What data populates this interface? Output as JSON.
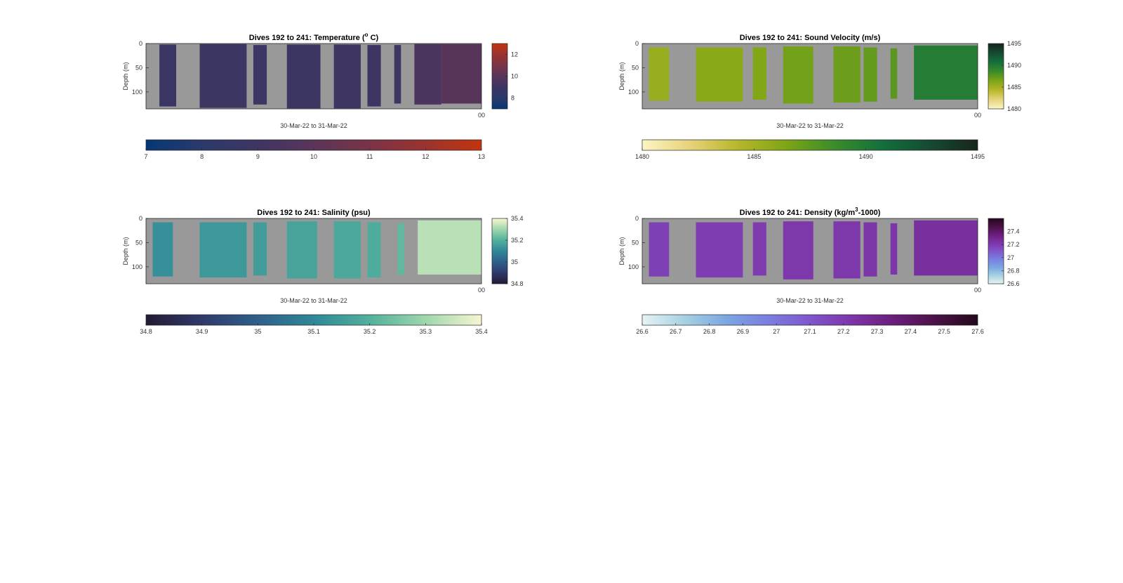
{
  "chart_data": [
    {
      "type": "heatmap",
      "title": "Dives 192 to 241: Temperature (",
      "title_sup": "o",
      "title_tail": " C)",
      "xlabel": "30-Mar-22 to 31-Mar-22",
      "ylabel": "Depth (m)",
      "x_tick_label": "00",
      "ylim": [
        0,
        135
      ],
      "y_ticks": [
        "0",
        "50",
        "100"
      ],
      "colorbar_right_ticks": [
        "12",
        "10",
        "8"
      ],
      "colorbar_bottom_ticks": [
        "7",
        "8",
        "9",
        "10",
        "11",
        "12",
        "13"
      ],
      "clim": [
        7,
        13
      ],
      "colormap": [
        "#053775",
        "#2b3a6b",
        "#3e3562",
        "#5a3559",
        "#7a3346",
        "#9a3330",
        "#c2350d"
      ],
      "background": "#999999",
      "profiles": [
        {
          "x": 0.04,
          "w": 0.05,
          "top": 2,
          "bottom": 130,
          "value": 8.8
        },
        {
          "x": 0.16,
          "w": 0.14,
          "top": 1,
          "bottom": 133,
          "value": 8.9
        },
        {
          "x": 0.32,
          "w": 0.04,
          "top": 3,
          "bottom": 126,
          "value": 8.9
        },
        {
          "x": 0.42,
          "w": 0.1,
          "top": 2,
          "bottom": 134,
          "value": 8.9
        },
        {
          "x": 0.56,
          "w": 0.08,
          "top": 2,
          "bottom": 134,
          "value": 9.0
        },
        {
          "x": 0.66,
          "w": 0.04,
          "top": 3,
          "bottom": 130,
          "value": 9.0
        },
        {
          "x": 0.74,
          "w": 0.02,
          "top": 3,
          "bottom": 124,
          "value": 9.0
        },
        {
          "x": 0.8,
          "w": 0.08,
          "top": 1,
          "bottom": 126,
          "value": 9.4
        },
        {
          "x": 0.88,
          "w": 0.12,
          "top": 1,
          "bottom": 124,
          "value": 9.9
        }
      ]
    },
    {
      "type": "heatmap",
      "title": "Dives 192 to 241: Sound Velocity (m/s)",
      "xlabel": "30-Mar-22 to 31-Mar-22",
      "ylabel": "Depth (m)",
      "x_tick_label": "00",
      "ylim": [
        0,
        135
      ],
      "y_ticks": [
        "0",
        "50",
        "100"
      ],
      "colorbar_right_ticks": [
        "1495",
        "1490",
        "1485",
        "1480"
      ],
      "colorbar_bottom_ticks": [
        "1480",
        "1485",
        "1490",
        "1495"
      ],
      "clim": [
        1480,
        1495
      ],
      "colormap": [
        "#fbf6c4",
        "#e6d27b",
        "#b7b72a",
        "#7ea515",
        "#3c8c2a",
        "#14703c",
        "#164a33",
        "#17251b"
      ],
      "background": "#999999",
      "profiles": [
        {
          "x": 0.02,
          "w": 0.06,
          "top": 8,
          "bottom": 118,
          "value": 1485.5
        },
        {
          "x": 0.16,
          "w": 0.14,
          "top": 8,
          "bottom": 120,
          "value": 1486.0
        },
        {
          "x": 0.33,
          "w": 0.04,
          "top": 8,
          "bottom": 116,
          "value": 1486.3
        },
        {
          "x": 0.42,
          "w": 0.09,
          "top": 6,
          "bottom": 124,
          "value": 1486.8
        },
        {
          "x": 0.57,
          "w": 0.08,
          "top": 6,
          "bottom": 122,
          "value": 1487.0
        },
        {
          "x": 0.66,
          "w": 0.04,
          "top": 8,
          "bottom": 120,
          "value": 1487.3
        },
        {
          "x": 0.74,
          "w": 0.02,
          "top": 10,
          "bottom": 114,
          "value": 1487.6
        },
        {
          "x": 0.81,
          "w": 0.19,
          "top": 4,
          "bottom": 116,
          "value": 1489.8
        }
      ]
    },
    {
      "type": "heatmap",
      "title": "Dives 192 to 241: Salinity (psu)",
      "xlabel": "30-Mar-22 to 31-Mar-22",
      "ylabel": "Depth (m)",
      "x_tick_label": "00",
      "ylim": [
        0,
        135
      ],
      "y_ticks": [
        "0",
        "50",
        "100"
      ],
      "colorbar_right_ticks": [
        "35.4",
        "35.2",
        "35",
        "34.8"
      ],
      "colorbar_bottom_ticks": [
        "34.8",
        "34.9",
        "35",
        "35.1",
        "35.2",
        "35.3",
        "35.4"
      ],
      "clim": [
        34.8,
        35.4
      ],
      "colormap": [
        "#241a33",
        "#2f3a6a",
        "#2f5f8b",
        "#2f8898",
        "#52b09c",
        "#9ed7ac",
        "#f7f6d1"
      ],
      "background": "#999999",
      "profiles": [
        {
          "x": 0.02,
          "w": 0.06,
          "top": 8,
          "bottom": 120,
          "value": 35.12
        },
        {
          "x": 0.16,
          "w": 0.14,
          "top": 8,
          "bottom": 122,
          "value": 35.14
        },
        {
          "x": 0.32,
          "w": 0.04,
          "top": 8,
          "bottom": 118,
          "value": 35.15
        },
        {
          "x": 0.42,
          "w": 0.09,
          "top": 6,
          "bottom": 124,
          "value": 35.17
        },
        {
          "x": 0.56,
          "w": 0.08,
          "top": 6,
          "bottom": 124,
          "value": 35.18
        },
        {
          "x": 0.66,
          "w": 0.04,
          "top": 8,
          "bottom": 122,
          "value": 35.19
        },
        {
          "x": 0.75,
          "w": 0.02,
          "top": 10,
          "bottom": 116,
          "value": 35.22
        },
        {
          "x": 0.81,
          "w": 0.19,
          "top": 4,
          "bottom": 116,
          "value": 35.33
        }
      ]
    },
    {
      "type": "heatmap",
      "title": "Dives 192 to 241: Density (kg/m",
      "title_sup": "3",
      "title_tail": "-1000)",
      "xlabel": "30-Mar-22 to 31-Mar-22",
      "ylabel": "Depth (m)",
      "x_tick_label": "00",
      "ylim": [
        0,
        135
      ],
      "y_ticks": [
        "0",
        "50",
        "100"
      ],
      "colorbar_right_ticks": [
        "27.4",
        "27.2",
        "27",
        "26.8",
        "26.6"
      ],
      "colorbar_bottom_ticks": [
        "26.6",
        "26.7",
        "26.8",
        "26.9",
        "27",
        "27.1",
        "27.2",
        "27.3",
        "27.4",
        "27.5",
        "27.6"
      ],
      "clim": [
        26.6,
        27.6
      ],
      "colormap": [
        "#e7f3f3",
        "#a7d1e2",
        "#7ba7e2",
        "#7a7fdf",
        "#8056cc",
        "#7d35a8",
        "#6b1d7c",
        "#4a1246",
        "#25081c"
      ],
      "background": "#999999",
      "profiles": [
        {
          "x": 0.02,
          "w": 0.06,
          "top": 8,
          "bottom": 120,
          "value": 27.18
        },
        {
          "x": 0.16,
          "w": 0.14,
          "top": 8,
          "bottom": 122,
          "value": 27.19
        },
        {
          "x": 0.33,
          "w": 0.04,
          "top": 8,
          "bottom": 118,
          "value": 27.2
        },
        {
          "x": 0.42,
          "w": 0.09,
          "top": 6,
          "bottom": 126,
          "value": 27.21
        },
        {
          "x": 0.57,
          "w": 0.08,
          "top": 6,
          "bottom": 124,
          "value": 27.21
        },
        {
          "x": 0.66,
          "w": 0.04,
          "top": 8,
          "bottom": 120,
          "value": 27.22
        },
        {
          "x": 0.74,
          "w": 0.02,
          "top": 10,
          "bottom": 116,
          "value": 27.22
        },
        {
          "x": 0.81,
          "w": 0.19,
          "top": 4,
          "bottom": 118,
          "value": 27.25
        }
      ]
    }
  ]
}
